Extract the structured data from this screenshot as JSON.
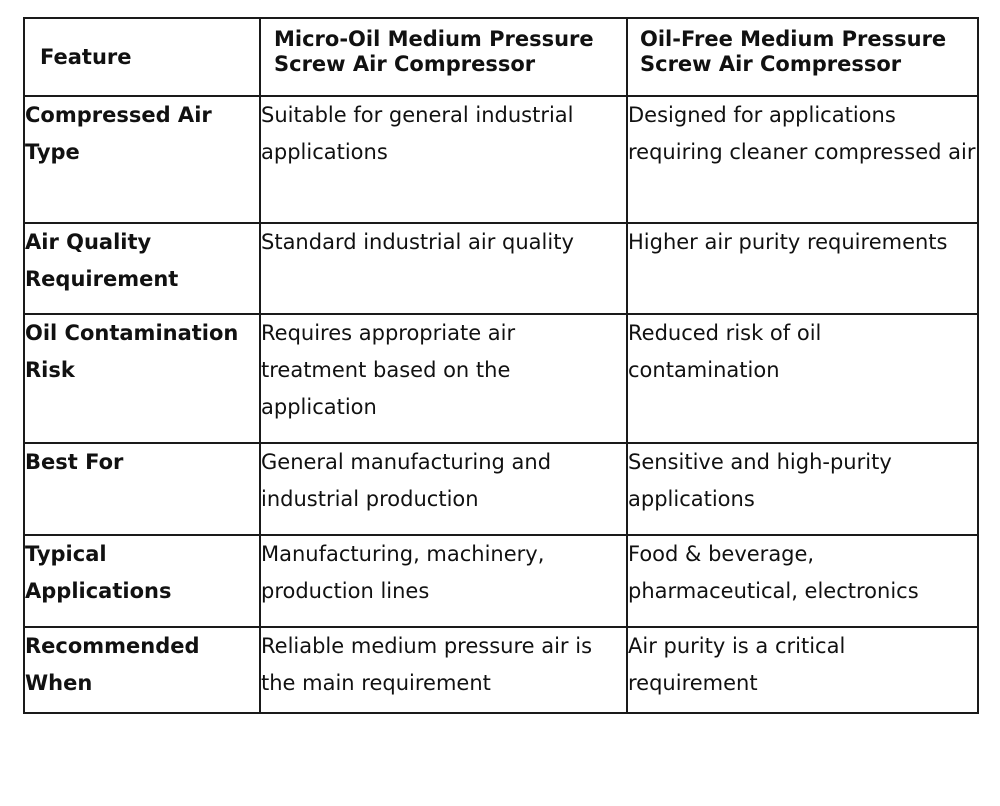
{
  "table": {
    "headers": [
      "Feature",
      "Micro-Oil Medium Pressure Screw Air Compressor",
      "Oil-Free Medium Pressure Screw Air Compressor"
    ],
    "rows": [
      {
        "feature": "Compressed Air Type",
        "micro_oil": "Suitable for general industrial applications",
        "oil_free": "Designed for applications requiring cleaner compressed air"
      },
      {
        "feature": "Air Quality Requirement",
        "micro_oil": "Standard industrial air quality",
        "oil_free": "Higher air purity requirements"
      },
      {
        "feature": "Oil Contamination Risk",
        "micro_oil": "Requires appropriate air treatment based on the application",
        "oil_free": "Reduced risk of oil contamination"
      },
      {
        "feature": "Best For",
        "micro_oil": "General manufacturing and industrial production",
        "oil_free": "Sensitive and high-purity applications"
      },
      {
        "feature": "Typical Applications",
        "micro_oil": "Manufacturing, machinery, production lines",
        "oil_free": "Food & beverage, pharmaceutical, electronics"
      },
      {
        "feature": "Recommended When",
        "micro_oil": "Reliable medium pressure air is the main requirement",
        "oil_free": "Air purity is a critical requirement"
      }
    ]
  }
}
